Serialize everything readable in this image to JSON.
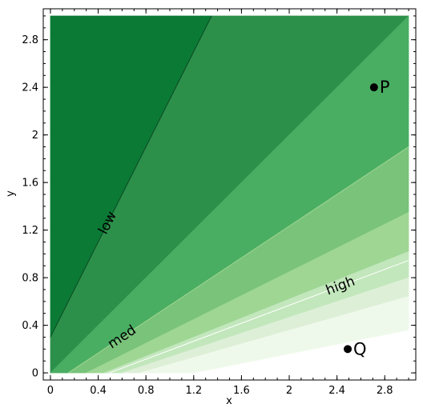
{
  "chart_data": {
    "type": "filled-contour",
    "xlabel": "x",
    "ylabel": "y",
    "xlim": [
      -0.06,
      3.06
    ],
    "ylim": [
      -0.06,
      3.06
    ],
    "data_extent": {
      "x": [
        0,
        3
      ],
      "y": [
        0,
        3
      ]
    },
    "xticks": [
      0,
      0.4,
      0.8,
      1.2,
      1.6,
      2,
      2.4,
      2.8
    ],
    "yticks": [
      0,
      0.4,
      0.8,
      1.2,
      1.6,
      2,
      2.4,
      2.8
    ],
    "x_minor_step": 0.1,
    "y_minor_step": 0.1,
    "field": "(x + 0.3) / (y + 0.3)",
    "fill_levels": [
      0,
      0.5,
      1,
      1.5,
      2,
      2.5,
      3,
      3.5,
      5
    ],
    "fill_colors": [
      "#0a7a35",
      "#2d904a",
      "#4aae62",
      "#79c37a",
      "#9fd694",
      "#c2e7bc",
      "#deefd8",
      "#eff9eb"
    ],
    "contour_lines": [
      {
        "label": "low",
        "level": 0.5,
        "color": "#0a4a22"
      },
      {
        "label": "med",
        "level": 1.5,
        "color": "#9fd694"
      },
      {
        "label": "high",
        "level": 2.65,
        "color": "#ffffff"
      }
    ],
    "points": [
      {
        "label": "P",
        "x": 2.71,
        "y": 2.4
      },
      {
        "label": "Q",
        "x": 2.49,
        "y": 0.2
      }
    ]
  }
}
